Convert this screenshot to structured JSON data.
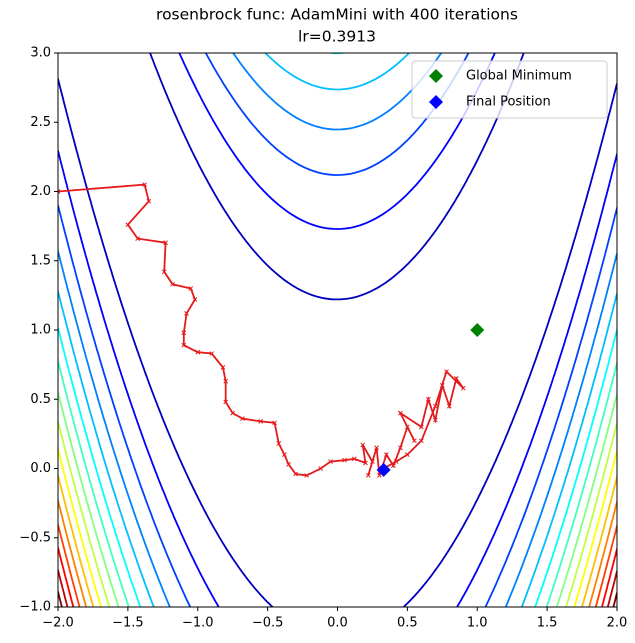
{
  "chart_data": {
    "type": "contour",
    "title": "rosenbrock func: AdamMini with 400 iterations",
    "subtitle": "lr=0.3913",
    "xlim": [
      -2,
      2
    ],
    "ylim": [
      -1,
      3
    ],
    "xticks": [
      {
        "value": -2,
        "label": "−2.0"
      },
      {
        "value": -1.5,
        "label": "−1.5"
      },
      {
        "value": -1,
        "label": "−1.0"
      },
      {
        "value": -0.5,
        "label": "−0.5"
      },
      {
        "value": 0,
        "label": "0.0"
      },
      0.5,
      {
        "value": 1,
        "label": "1.0"
      },
      1.5,
      {
        "value": 2,
        "label": "2.0"
      }
    ],
    "yticks": [
      {
        "value": -1,
        "label": "−1.0"
      },
      {
        "value": -0.5,
        "label": "−0.5"
      },
      {
        "value": 0,
        "label": "0.0"
      },
      0.5,
      {
        "value": 1,
        "label": "1.0"
      },
      1.5,
      {
        "value": 2,
        "label": "2.0"
      },
      2.5,
      {
        "value": 3,
        "label": "3.0"
      }
    ],
    "contour_levels": [
      0,
      150,
      300,
      450,
      600,
      750,
      900,
      1050,
      1200,
      1350,
      1500,
      1650,
      1800,
      1950,
      2100,
      2250,
      2400
    ],
    "path": {
      "color": "#e41a1c",
      "x": [
        -2,
        -1.38,
        -1.35,
        -1.5,
        -1.43,
        -1.23,
        -1.24,
        -1.18,
        -1.05,
        -1.02,
        -1.08,
        -1.1,
        -1.1,
        -1.0,
        -0.9,
        -0.82,
        -0.8,
        -0.8,
        -0.75,
        -0.68,
        -0.55,
        -0.45,
        -0.42,
        -0.38,
        -0.35,
        -0.3,
        -0.22,
        -0.12,
        -0.05,
        0.05,
        0.12,
        0.2,
        0.18,
        0.25,
        0.22,
        0.28,
        0.3,
        0.35,
        0.4,
        0.45,
        0.5,
        0.55,
        0.45,
        0.6,
        0.65,
        0.7,
        0.75,
        0.8,
        0.85,
        0.9,
        0.78,
        0.7,
        0.6,
        0.5,
        0.42,
        0.33
      ],
      "y": [
        2,
        2.05,
        1.93,
        1.76,
        1.66,
        1.63,
        1.42,
        1.33,
        1.3,
        1.22,
        1.12,
        0.98,
        0.89,
        0.84,
        0.83,
        0.73,
        0.63,
        0.48,
        0.4,
        0.36,
        0.34,
        0.33,
        0.18,
        0.1,
        0.03,
        -0.04,
        -0.05,
        0.0,
        0.05,
        0.06,
        0.07,
        0.04,
        0.17,
        0.05,
        -0.05,
        0.15,
        -0.05,
        0.1,
        0.02,
        0.15,
        0.3,
        0.2,
        0.4,
        0.3,
        0.5,
        0.35,
        0.6,
        0.45,
        0.65,
        0.58,
        0.7,
        0.45,
        0.2,
        0.1,
        0.05,
        0.0
      ]
    },
    "markers": [
      {
        "name": "Global Minimum",
        "color": "#008000",
        "x": [
          1
        ],
        "y": [
          1
        ]
      },
      {
        "name": "Final Position",
        "color": "#0000ff",
        "x": [
          0.33
        ],
        "y": [
          -0.01
        ]
      }
    ]
  }
}
